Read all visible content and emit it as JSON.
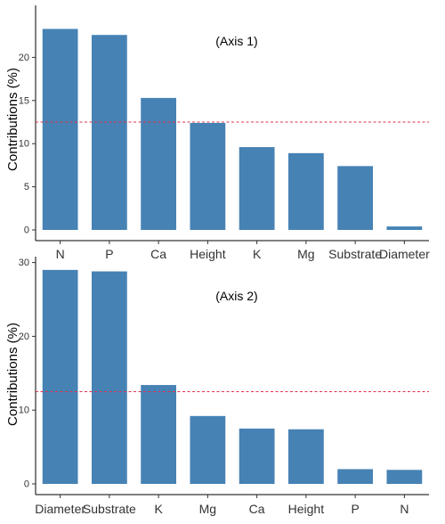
{
  "chart_data": [
    {
      "type": "bar",
      "annotation": "(Axis 1)",
      "ylabel": "Contributions (%)",
      "xlabel": "",
      "ylim": [
        0,
        25
      ],
      "yticks": [
        0,
        5,
        10,
        15,
        20
      ],
      "categories": [
        "N",
        "P",
        "Ca",
        "Height",
        "K",
        "Mg",
        "Substrate",
        "Diameter"
      ],
      "values": [
        23.3,
        22.6,
        15.3,
        12.4,
        9.6,
        8.9,
        7.4,
        0.4
      ],
      "reference_line": 12.5,
      "bar_color": "#4682B4",
      "reference_color": "#E0334A"
    },
    {
      "type": "bar",
      "annotation": "(Axis 2)",
      "ylabel": "Contributions (%)",
      "xlabel": "",
      "ylim": [
        0,
        30
      ],
      "yticks": [
        0,
        10,
        20,
        30
      ],
      "categories": [
        "Diameter",
        "Substrate",
        "K",
        "Mg",
        "Ca",
        "Height",
        "P",
        "N"
      ],
      "values": [
        29.0,
        28.8,
        13.4,
        9.2,
        7.5,
        7.4,
        2.0,
        1.9
      ],
      "reference_line": 12.5,
      "bar_color": "#4682B4",
      "reference_color": "#E0334A"
    }
  ]
}
